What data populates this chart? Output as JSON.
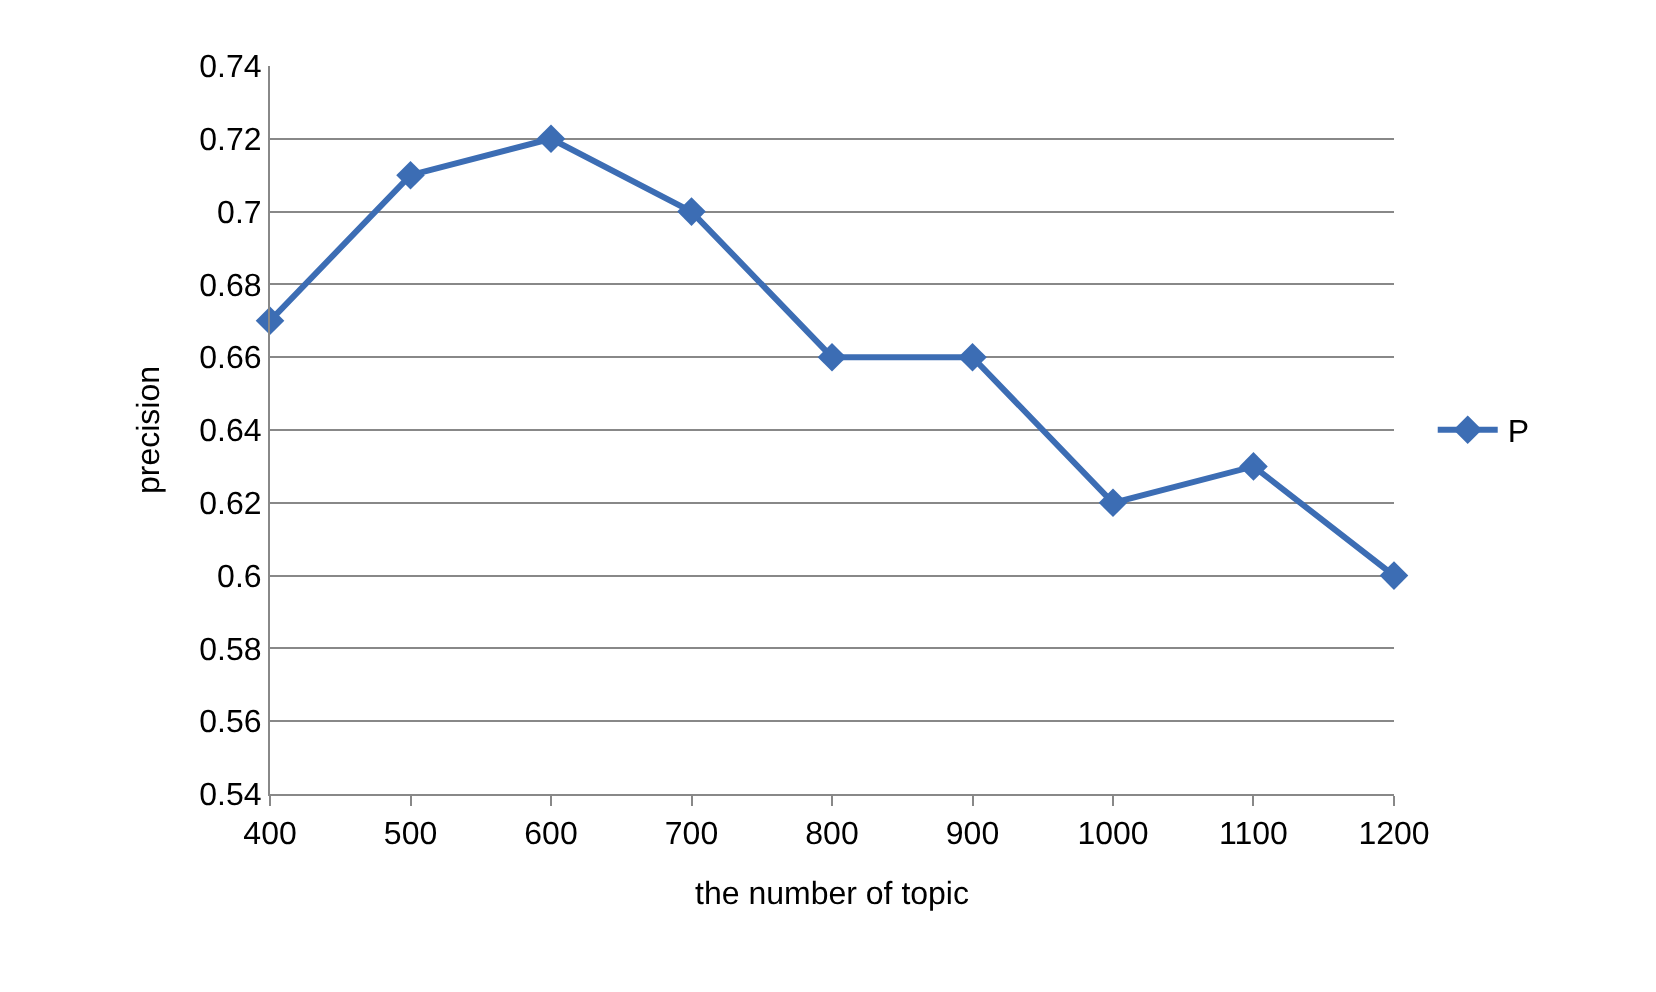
{
  "chart_data": {
    "type": "line",
    "xlabel": "the number of topic",
    "ylabel": "precision",
    "categories": [
      "400",
      "500",
      "600",
      "700",
      "800",
      "900",
      "1000",
      "1100",
      "1200"
    ],
    "series": [
      {
        "name": "P",
        "color": "#3c6db4",
        "values": [
          0.67,
          0.71,
          0.72,
          0.7,
          0.66,
          0.66,
          0.62,
          0.63,
          0.6
        ]
      }
    ],
    "ylim": [
      0.54,
      0.74
    ],
    "yticks": [
      0.54,
      0.56,
      0.58,
      0.6,
      0.62,
      0.64,
      0.66,
      0.68,
      0.7,
      0.72,
      0.74
    ],
    "grid": "y",
    "legend": "right",
    "marker": "diamond",
    "line_style": "solid"
  }
}
